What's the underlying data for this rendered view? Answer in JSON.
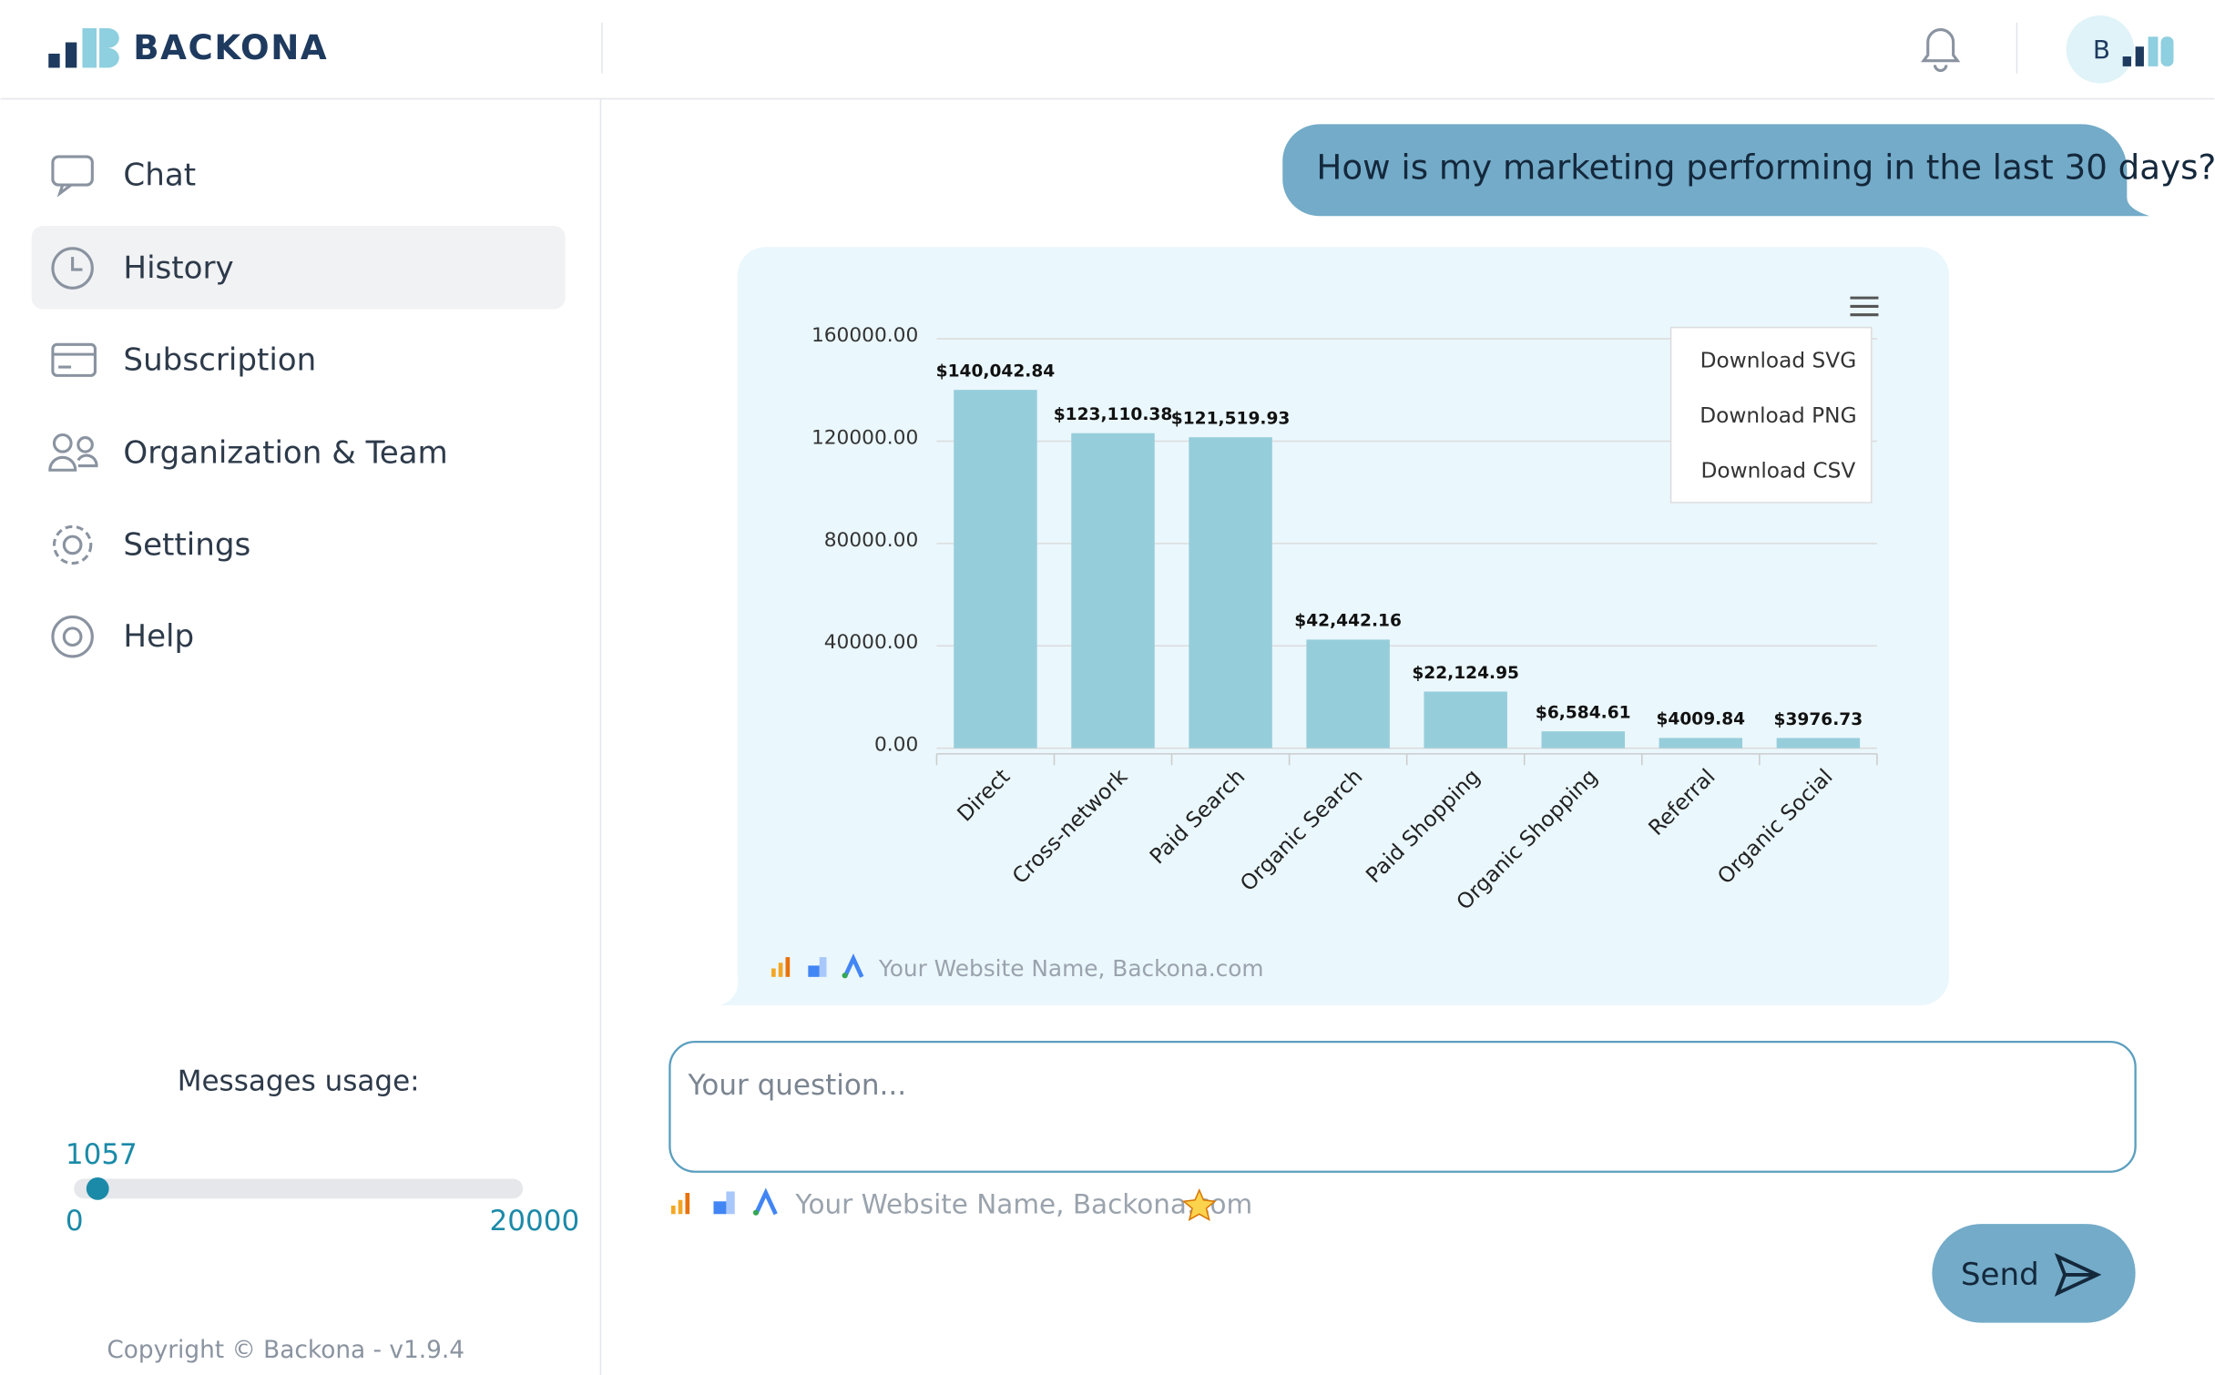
{
  "header": {
    "logo": "BACKONA",
    "avatar": "B"
  },
  "sidebar": {
    "menu": [
      "Chat",
      "History",
      "Subscription",
      "Organization & Team",
      "Settings",
      "Help"
    ],
    "usage": {
      "title": "Messages usage:",
      "value": 1057,
      "min": 0,
      "max": 20000
    },
    "copyright": "Copyright © Backona - v1.9.4"
  },
  "chat": {
    "user_message": "How is my marketing performing in the last 30 days?",
    "chart_menu": [
      "Download SVG",
      "Download PNG",
      "Download CSV"
    ],
    "source": "Your Website Name, Backona.com",
    "input_placeholder": "Your question...",
    "input_source": "Your Website Name, Backona.com",
    "send": "Send"
  },
  "chart_data": {
    "type": "bar",
    "categories": [
      "Direct",
      "Cross-network",
      "Paid Search",
      "Organic Search",
      "Paid Shopping",
      "Organic Shopping",
      "Referral",
      "Organic Social"
    ],
    "values": [
      140042.84,
      123110.38,
      121519.93,
      42442.16,
      22124.95,
      6584.61,
      4009.84,
      3976.73
    ],
    "value_labels": [
      "$140,042.84",
      "$123,110.38",
      "$121,519.93",
      "$42,442.16",
      "$22,124.95",
      "$6,584.61",
      "$4009.84",
      "$3976.73"
    ],
    "color": "#96cddb",
    "ylim": [
      0,
      160000
    ],
    "yticks": [
      {
        "value": 0,
        "label": "0.00"
      },
      {
        "value": 40000,
        "label": "40000.00"
      },
      {
        "value": 80000,
        "label": "80000.00"
      },
      {
        "value": 120000,
        "label": "120000.00"
      },
      {
        "value": 160000,
        "label": "160000.00"
      }
    ],
    "grid": true
  }
}
